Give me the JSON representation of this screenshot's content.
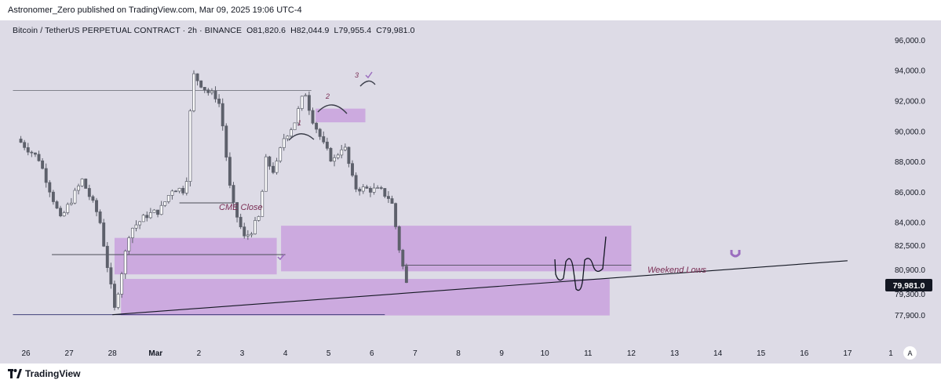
{
  "header": {
    "published_by": "Astronomer_Zero published on TradingView.com, Mar 09, 2025 19:06 UTC-4"
  },
  "symbol": {
    "name": "Bitcoin / TetherUS PERPETUAL CONTRACT · 2h · BINANCE",
    "open": "O81,820.6",
    "high": "H82,044.9",
    "low": "L79,955.4",
    "close": "C79,981.0"
  },
  "footer": {
    "brand": "TradingView",
    "auto_scale_label": "A"
  },
  "colors": {
    "background": "#dddbe6",
    "candle": "#5d606b",
    "zone": "#b86fd6",
    "annotation_text": "#7a2d54",
    "price_tag_bg": "#131722"
  },
  "chart_data": {
    "type": "candlestick",
    "timeframe": "2h",
    "ylim": [
      76800,
      97200
    ],
    "last_price": 79981.0,
    "last_price_label": "79,981.0",
    "y_ticks": [
      {
        "value": 96000,
        "label": "96,000.0"
      },
      {
        "value": 94000,
        "label": "94,000.0"
      },
      {
        "value": 92000,
        "label": "92,000.0"
      },
      {
        "value": 90000,
        "label": "90,000.0"
      },
      {
        "value": 88000,
        "label": "88,000.0"
      },
      {
        "value": 86000,
        "label": "86,000.0"
      },
      {
        "value": 84000,
        "label": "84,000.0"
      },
      {
        "value": 82500,
        "label": "82,500.0"
      },
      {
        "value": 80900,
        "label": "80,900.0"
      },
      {
        "value": 79300,
        "label": "79,300.0"
      },
      {
        "value": 77900,
        "label": "77,900.0"
      }
    ],
    "x_ticks": [
      "26",
      "27",
      "28",
      "Mar",
      "2",
      "3",
      "4",
      "5",
      "6",
      "7",
      "8",
      "9",
      "10",
      "11",
      "12",
      "13",
      "14",
      "15",
      "16",
      "17",
      "1"
    ],
    "bold_x_ticks": [
      "Mar"
    ],
    "anchors": [
      [
        -0.2,
        89500
      ],
      [
        0.3,
        88200
      ],
      [
        0.8,
        84200
      ],
      [
        1.3,
        86800
      ],
      [
        1.7,
        84300
      ],
      [
        2.05,
        78300
      ],
      [
        2.4,
        83500
      ],
      [
        2.8,
        84500
      ],
      [
        3.1,
        84800
      ],
      [
        3.4,
        86300
      ],
      [
        3.7,
        86100
      ],
      [
        3.85,
        93800
      ],
      [
        4.2,
        92600
      ],
      [
        4.4,
        92300
      ],
      [
        4.5,
        91600
      ],
      [
        4.75,
        85500
      ],
      [
        5.05,
        83000
      ],
      [
        5.2,
        83400
      ],
      [
        5.4,
        84400
      ],
      [
        5.55,
        88100
      ],
      [
        5.75,
        87300
      ],
      [
        5.95,
        89500
      ],
      [
        6.2,
        90500
      ],
      [
        6.45,
        92700
      ],
      [
        6.6,
        91000
      ],
      [
        6.9,
        89000
      ],
      [
        7.1,
        88000
      ],
      [
        7.35,
        89200
      ],
      [
        7.6,
        86300
      ],
      [
        7.9,
        86200
      ],
      [
        8.2,
        86100
      ],
      [
        8.45,
        85500
      ],
      [
        8.65,
        82000
      ],
      [
        8.8,
        79981
      ]
    ],
    "annotations": {
      "cme_close_label": "CME Close",
      "weekend_lows_label": "Weekend Lows",
      "wave_labels": [
        "1",
        "2",
        "3"
      ]
    },
    "zones": [
      {
        "name": "zone-left",
        "from_day": 2.05,
        "to_day": 5.8,
        "low": 80600,
        "high": 83000
      },
      {
        "name": "zone-mid",
        "from_day": 5.9,
        "to_day": 14.0,
        "low": 80800,
        "high": 83800
      },
      {
        "name": "zone-lower",
        "from_day": 2.2,
        "to_day": 13.5,
        "low": 77900,
        "high": 80300
      },
      {
        "name": "zone-top",
        "from_day": 6.7,
        "to_day": 7.85,
        "low": 90600,
        "high": 91500
      }
    ],
    "levels": [
      {
        "name": "weekend-lows-line",
        "from_day": 8.7,
        "to_day": 14.0,
        "value": 81200
      },
      {
        "name": "cme-close-line",
        "from_day": 3.55,
        "to_day": 4.8,
        "value": 85300
      },
      {
        "name": "top-line",
        "from_day": -0.3,
        "to_day": 6.6,
        "value": 92700
      },
      {
        "name": "left-level-line",
        "from_day": 0.6,
        "to_day": 6.0,
        "value": 81900
      },
      {
        "name": "low-line",
        "from_day": -0.3,
        "to_day": 8.3,
        "value": 77950
      }
    ],
    "trendline": {
      "from_day": 2.0,
      "from_value": 77950,
      "to_day": 19.0,
      "to_value": 81500
    }
  }
}
